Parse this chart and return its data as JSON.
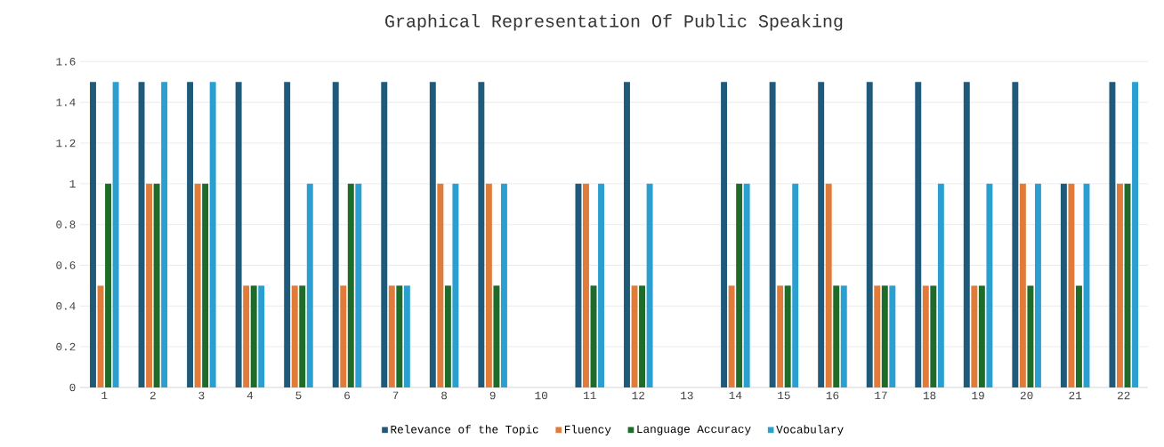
{
  "chart_data": {
    "type": "bar",
    "title": "Graphical Representation Of Public Speaking",
    "categories": [
      "1",
      "2",
      "3",
      "4",
      "5",
      "6",
      "7",
      "8",
      "9",
      "10",
      "11",
      "12",
      "13",
      "14",
      "15",
      "16",
      "17",
      "18",
      "19",
      "20",
      "21",
      "22"
    ],
    "series": [
      {
        "name": "Relevance of the Topic",
        "color": "#1f5a7a",
        "values": [
          1.5,
          1.5,
          1.5,
          1.5,
          1.5,
          1.5,
          1.5,
          1.5,
          1.5,
          0,
          1,
          1.5,
          0,
          1.5,
          1.5,
          1.5,
          1.5,
          1.5,
          1.5,
          1.5,
          1,
          1.5
        ]
      },
      {
        "name": "Fluency",
        "color": "#e07b39",
        "values": [
          0.5,
          1,
          1,
          0.5,
          0.5,
          0.5,
          0.5,
          1,
          1,
          0,
          1,
          0.5,
          0,
          0.5,
          0.5,
          1,
          0.5,
          0.5,
          0.5,
          1,
          1,
          1
        ]
      },
      {
        "name": "Language Accuracy",
        "color": "#1e6b2a",
        "values": [
          1,
          1,
          1,
          0.5,
          0.5,
          1,
          0.5,
          0.5,
          0.5,
          0,
          0.5,
          0.5,
          0,
          1,
          0.5,
          0.5,
          0.5,
          0.5,
          0.5,
          0.5,
          0.5,
          1
        ]
      },
      {
        "name": "Vocabulary",
        "color": "#2b9fd0",
        "values": [
          1.5,
          1.5,
          1.5,
          0.5,
          1,
          1,
          0.5,
          1,
          1,
          0,
          1,
          1,
          0,
          1,
          1,
          0.5,
          0.5,
          1,
          1,
          1,
          1,
          1.5
        ]
      }
    ],
    "ylim": [
      0,
      1.6
    ],
    "yticks": [
      0,
      0.2,
      0.4,
      0.6,
      0.8,
      1,
      1.2,
      1.4,
      1.6
    ],
    "grid": "y",
    "legend": "bottom"
  }
}
